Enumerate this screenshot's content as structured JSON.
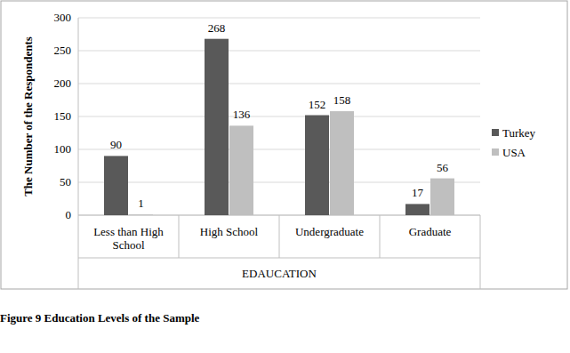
{
  "chart_data": {
    "type": "bar",
    "categories": [
      "Less than High School",
      "High School",
      "Undergraduate",
      "Graduate"
    ],
    "series": [
      {
        "name": "Turkey",
        "color": "#595959",
        "values": [
          90,
          268,
          152,
          17
        ]
      },
      {
        "name": "USA",
        "color": "#bfbfbf",
        "values": [
          1,
          136,
          158,
          56
        ]
      }
    ],
    "x_label": "EDAUCATION",
    "y_label": "The Number of the Respondents",
    "ylim": [
      0,
      300
    ],
    "yticks": [
      0,
      50,
      100,
      150,
      200,
      250,
      300
    ],
    "grid": true,
    "legend": "right",
    "data_labels": true
  },
  "caption": "Figure 9 Education Levels of the Sample"
}
